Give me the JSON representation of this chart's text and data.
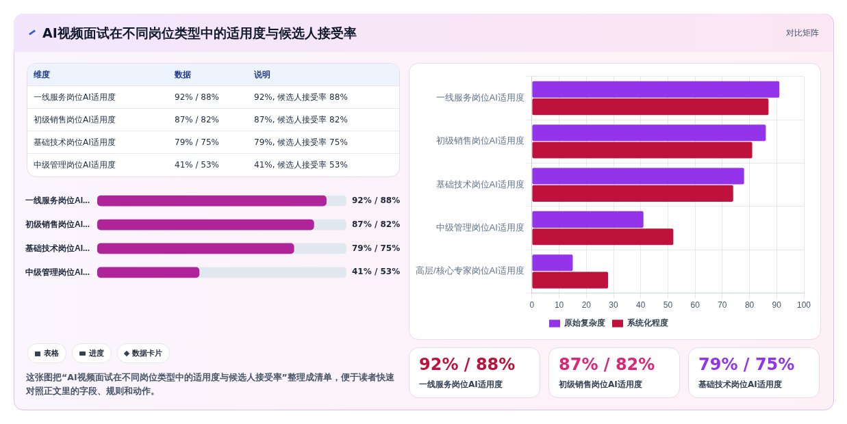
{
  "chart_data": [
    {
      "type": "other",
      "title": "AI视频面试在不同岗位类型中的适用度与候选人接受率",
      "annotations": [
        "对比矩阵",
        "表格",
        "进度",
        "数据卡片",
        "这张图把“AI视频面试在不同岗位类型中的适用度与候选人接受率”整理成清单，便于读者快速对照正文里的字段、规则和动作。"
      ]
    },
    {
      "type": "other",
      "annotations": [
        "维度",
        "数据",
        "说明",
        "一线服务岗位AI适用度",
        "92% / 88%",
        "92%, 候选人接受率 88%",
        "初级销售岗位AI适用度",
        "87% / 82%",
        "87%, 候选人接受率 82%",
        "基础技术岗位AI适用度",
        "79% / 75%",
        "79%, 候选人接受率 75%",
        "中级管理岗位AI适用度",
        "41% / 53%",
        "41%, 候选人接受率 53%"
      ]
    },
    {
      "type": "bar",
      "orientation": "horizontal",
      "categories": [
        "一线服务岗位AI...",
        "初级销售岗位AI...",
        "基础技术岗位AI...",
        "中级管理岗位AI..."
      ],
      "values": [
        92,
        87,
        79,
        41
      ],
      "xlim": [
        0,
        100
      ],
      "tick_labels": "y",
      "color": "#b0249a",
      "value_labels": [
        "92% / 88%",
        "87% / 82%",
        "79% / 75%",
        "41% / 53%"
      ]
    },
    {
      "type": "bar",
      "orientation": "horizontal",
      "categories": [
        "一线服务岗位AI适用度",
        "初级销售岗位AI适用度",
        "基础技术岗位AI适用度",
        "中级管理岗位AI适用度",
        "高层/核心专家岗位AI适用度"
      ],
      "series": [
        {
          "name": "原始复杂度",
          "color": "#9333ea",
          "values": [
            91,
            86,
            78,
            41,
            15
          ]
        },
        {
          "name": "系统化程度",
          "color": "#be123c",
          "values": [
            87,
            81,
            74,
            52,
            28
          ]
        }
      ],
      "xlim": [
        0,
        100
      ],
      "xticks": [
        0,
        10,
        20,
        30,
        40,
        50,
        60,
        70,
        80,
        90,
        100
      ],
      "grid": true,
      "legend": "bottom"
    },
    {
      "type": "other",
      "title": "92% / 88%",
      "subtitle": "一线服务岗位AI适用度",
      "color": "#be123c"
    },
    {
      "type": "other",
      "title": "87% / 82%",
      "subtitle": "初级销售岗位AI适用度",
      "color": "#db2777"
    },
    {
      "type": "other",
      "title": "79% / 75%",
      "subtitle": "基础技术岗位AI适用度",
      "color": "#9333ea"
    }
  ]
}
